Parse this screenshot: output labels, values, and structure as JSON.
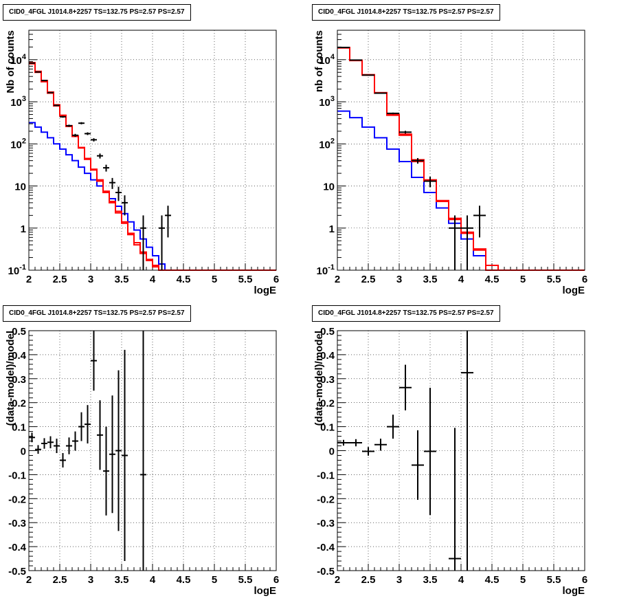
{
  "chart_data": [
    {
      "type": "line",
      "title": "CID0_4FGL J1014.8+2257 TS=132.75 PS=2.57 PS=2.57",
      "xlabel": "logE",
      "ylabel": "Nb of counts",
      "xlim": [
        2,
        6
      ],
      "ylim": [
        0.1,
        50000
      ],
      "yscale": "log",
      "grid": true,
      "colors": {
        "model_total": "#ff0000",
        "model_source": "#0000ff",
        "data": "#000000"
      },
      "x_ticks": [
        "2",
        "2.5",
        "3",
        "3.5",
        "4",
        "4.5",
        "5",
        "5.5",
        "6"
      ],
      "y_ticks": [
        "10^-1",
        "1",
        "10",
        "10^2",
        "10^3",
        "10^4"
      ],
      "bin_edges": [
        2.0,
        2.1,
        2.2,
        2.3,
        2.4,
        2.5,
        2.6,
        2.7,
        2.8,
        2.9,
        3.0,
        3.1,
        3.2,
        3.3,
        3.4,
        3.5,
        3.6,
        3.7,
        3.8,
        3.9,
        4.0,
        4.1,
        4.2,
        4.3,
        4.4,
        4.5,
        4.6,
        4.7,
        4.8,
        4.9,
        5.0,
        5.1,
        5.2,
        5.3,
        5.4,
        5.5,
        5.6,
        5.7,
        5.8,
        5.9,
        6.0
      ],
      "series": [
        {
          "values": [
            8000,
            5000,
            3000,
            1600,
            800,
            460,
            260,
            150,
            80,
            43,
            24,
            13,
            7,
            4,
            2.3,
            1.3,
            0.7,
            0.4,
            0.25,
            0.17,
            0.12,
            0.1,
            0.1,
            0.1,
            0.1,
            0.1,
            0.1,
            0.1,
            0.1,
            0.1,
            0.1,
            0.1,
            0.1,
            0.1,
            0.1,
            0.1,
            0.1,
            0.1,
            0.1,
            0.1
          ]
        },
        {
          "values": [
            8500,
            5300,
            3200,
            1700,
            850,
            480,
            270,
            155,
            82,
            45,
            25,
            14,
            7.5,
            4.3,
            2.5,
            1.4,
            0.75,
            0.45,
            0.27,
            0.18,
            0.13,
            0.1,
            0.1,
            0.1,
            0.1,
            0.1,
            0.1,
            0.1,
            0.1,
            0.1,
            0.1,
            0.1,
            0.1,
            0.1,
            0.1,
            0.1,
            0.1,
            0.1,
            0.1,
            0.1
          ]
        },
        {
          "values": [
            320,
            250,
            190,
            140,
            100,
            75,
            55,
            40,
            28,
            20,
            14,
            10,
            7,
            5,
            3.3,
            2.2,
            1.4,
            0.9,
            0.55,
            0.35,
            0.22,
            0.14,
            0.1,
            0.1,
            0.1,
            0.1,
            0.1,
            0.1,
            0.1,
            0.1,
            0.1,
            0.1,
            0.1,
            0.1,
            0.1,
            0.1,
            0.1,
            0.1,
            0.1,
            0.1
          ]
        }
      ],
      "points": [
        {
          "x": 2.05,
          "y": 8300,
          "ey": 90
        },
        {
          "x": 2.15,
          "y": 5100,
          "ey": 70
        },
        {
          "x": 2.25,
          "y": 3200,
          "ey": 57
        },
        {
          "x": 2.35,
          "y": 1650,
          "ey": 41
        },
        {
          "x": 2.45,
          "y": 820,
          "ey": 29
        },
        {
          "x": 2.55,
          "y": 440,
          "ey": 21
        },
        {
          "x": 2.65,
          "y": 270,
          "ey": 16
        },
        {
          "x": 2.75,
          "y": 160,
          "ey": 13
        },
        {
          "x": 2.85,
          "y": 310,
          "ey": 18
        },
        {
          "x": 2.95,
          "y": 175,
          "ey": 13
        },
        {
          "x": 3.05,
          "y": 125,
          "ey": 11
        },
        {
          "x": 3.15,
          "y": 52,
          "ey": 7
        },
        {
          "x": 3.25,
          "y": 27,
          "ey": 5
        },
        {
          "x": 3.35,
          "y": 12,
          "ey": 3.5
        },
        {
          "x": 3.45,
          "y": 7,
          "ey": 2.6
        },
        {
          "x": 3.55,
          "y": 4,
          "ey": 2
        },
        {
          "x": 3.85,
          "y": 1,
          "ey": 1
        },
        {
          "x": 4.15,
          "y": 1,
          "ey": 1
        },
        {
          "x": 4.25,
          "y": 2,
          "ey": 1.4
        }
      ]
    },
    {
      "type": "line",
      "title": "CID0_4FGL J1014.8+2257 TS=132.75 PS=2.57 PS=2.57",
      "xlabel": "logE",
      "ylabel": "nb of counts",
      "xlim": [
        2,
        6
      ],
      "ylim": [
        0.1,
        50000
      ],
      "yscale": "log",
      "grid": true,
      "colors": {
        "model_total": "#ff0000",
        "model_source": "#0000ff",
        "data": "#000000"
      },
      "x_ticks": [
        "2",
        "2.5",
        "3",
        "3.5",
        "4",
        "4.5",
        "5",
        "5.5",
        "6"
      ],
      "y_ticks": [
        "10^-1",
        "1",
        "10",
        "10^2",
        "10^3",
        "10^4"
      ],
      "bin_edges": [
        2.0,
        2.2,
        2.4,
        2.6,
        2.8,
        3.0,
        3.2,
        3.4,
        3.6,
        3.8,
        4.0,
        4.2,
        4.4,
        4.6,
        4.8,
        5.0,
        5.2,
        5.4,
        5.6,
        5.8,
        6.0
      ],
      "series": [
        {
          "values": [
            19000,
            9500,
            4300,
            1600,
            480,
            160,
            38,
            13,
            4.3,
            1.6,
            0.75,
            0.3,
            0.1,
            0.1,
            0.1,
            0.1,
            0.1,
            0.1,
            0.1,
            0.1
          ]
        },
        {
          "values": [
            19500,
            9700,
            4400,
            1650,
            500,
            170,
            42,
            14,
            4.5,
            1.7,
            0.8,
            0.32,
            0.13,
            0.1,
            0.1,
            0.1,
            0.1,
            0.1,
            0.1,
            0.1
          ]
        },
        {
          "values": [
            600,
            420,
            250,
            140,
            75,
            38,
            16,
            7,
            3,
            1.3,
            0.55,
            0.22,
            0.1,
            0.1,
            0.1,
            0.1,
            0.1,
            0.1,
            0.1,
            0.1
          ]
        }
      ],
      "points": [
        {
          "x": 2.1,
          "y": 19500,
          "ey": 140
        },
        {
          "x": 2.3,
          "y": 9800,
          "ey": 100
        },
        {
          "x": 2.5,
          "y": 4300,
          "ey": 66
        },
        {
          "x": 2.7,
          "y": 1600,
          "ey": 40
        },
        {
          "x": 2.9,
          "y": 530,
          "ey": 23
        },
        {
          "x": 3.1,
          "y": 190,
          "ey": 14
        },
        {
          "x": 3.3,
          "y": 40,
          "ey": 6
        },
        {
          "x": 3.5,
          "y": 13,
          "ey": 3.6
        },
        {
          "x": 3.9,
          "y": 1,
          "ey": 1
        },
        {
          "x": 4.1,
          "y": 1,
          "ey": 1
        },
        {
          "x": 4.3,
          "y": 2,
          "ey": 1.4
        }
      ]
    },
    {
      "type": "scatter",
      "title": "CID0_4FGL J1014.8+2257 TS=132.75 PS=2.57 PS=2.57",
      "xlabel": "logE",
      "ylabel": "(data-model)/model",
      "xlim": [
        2,
        6
      ],
      "ylim": [
        -0.5,
        0.5
      ],
      "grid": true,
      "x_ticks": [
        "2",
        "2.5",
        "3",
        "3.5",
        "4",
        "4.5",
        "5",
        "5.5",
        "6"
      ],
      "y_ticks": [
        "-0.5",
        "-0.4",
        "-0.3",
        "-0.2",
        "-0.1",
        "0",
        "0.1",
        "0.2",
        "0.3",
        "0.4",
        "0.5"
      ],
      "xerr": 0.05,
      "points": [
        {
          "x": 2.05,
          "y": 0.055,
          "ey": 0.02
        },
        {
          "x": 2.15,
          "y": 0.005,
          "ey": 0.018
        },
        {
          "x": 2.25,
          "y": 0.03,
          "ey": 0.022
        },
        {
          "x": 2.35,
          "y": 0.035,
          "ey": 0.025
        },
        {
          "x": 2.45,
          "y": 0.02,
          "ey": 0.03
        },
        {
          "x": 2.55,
          "y": -0.04,
          "ey": 0.03
        },
        {
          "x": 2.65,
          "y": 0.02,
          "ey": 0.035
        },
        {
          "x": 2.75,
          "y": 0.04,
          "ey": 0.04
        },
        {
          "x": 2.85,
          "y": 0.1,
          "ey": 0.06
        },
        {
          "x": 2.95,
          "y": 0.11,
          "ey": 0.08
        },
        {
          "x": 3.05,
          "y": 0.375,
          "ey": 0.125
        },
        {
          "x": 3.15,
          "y": 0.065,
          "ey": 0.145
        },
        {
          "x": 3.25,
          "y": -0.085,
          "ey": 0.185
        },
        {
          "x": 3.35,
          "y": -0.015,
          "ey": 0.245
        },
        {
          "x": 3.45,
          "y": 0.0,
          "ey": 0.335
        },
        {
          "x": 3.55,
          "y": -0.02,
          "ey": 0.44
        },
        {
          "x": 3.85,
          "y": -0.1,
          "ey": 1.0
        }
      ]
    },
    {
      "type": "scatter",
      "title": "CID0_4FGL J1014.8+2257 TS=132.75 PS=2.57 PS=2.57",
      "xlabel": "logE",
      "ylabel": "(data-model)/model",
      "xlim": [
        2,
        6
      ],
      "ylim": [
        -0.5,
        0.5
      ],
      "grid": true,
      "x_ticks": [
        "2",
        "2.5",
        "3",
        "3.5",
        "4",
        "4.5",
        "5",
        "5.5",
        "6"
      ],
      "y_ticks": [
        "-0.5",
        "-0.4",
        "-0.3",
        "-0.2",
        "-0.1",
        "0",
        "0.1",
        "0.2",
        "0.3",
        "0.4",
        "0.5"
      ],
      "xerr": 0.1,
      "points": [
        {
          "x": 2.1,
          "y": 0.033,
          "ey": 0.012
        },
        {
          "x": 2.3,
          "y": 0.033,
          "ey": 0.015
        },
        {
          "x": 2.5,
          "y": -0.003,
          "ey": 0.018
        },
        {
          "x": 2.7,
          "y": 0.025,
          "ey": 0.025
        },
        {
          "x": 2.9,
          "y": 0.1,
          "ey": 0.05
        },
        {
          "x": 3.1,
          "y": 0.263,
          "ey": 0.095
        },
        {
          "x": 3.3,
          "y": -0.06,
          "ey": 0.145
        },
        {
          "x": 3.5,
          "y": -0.003,
          "ey": 0.265
        },
        {
          "x": 3.9,
          "y": -0.45,
          "ey": 0.545
        },
        {
          "x": 4.1,
          "y": 0.325,
          "ey": 1.0
        }
      ]
    }
  ]
}
